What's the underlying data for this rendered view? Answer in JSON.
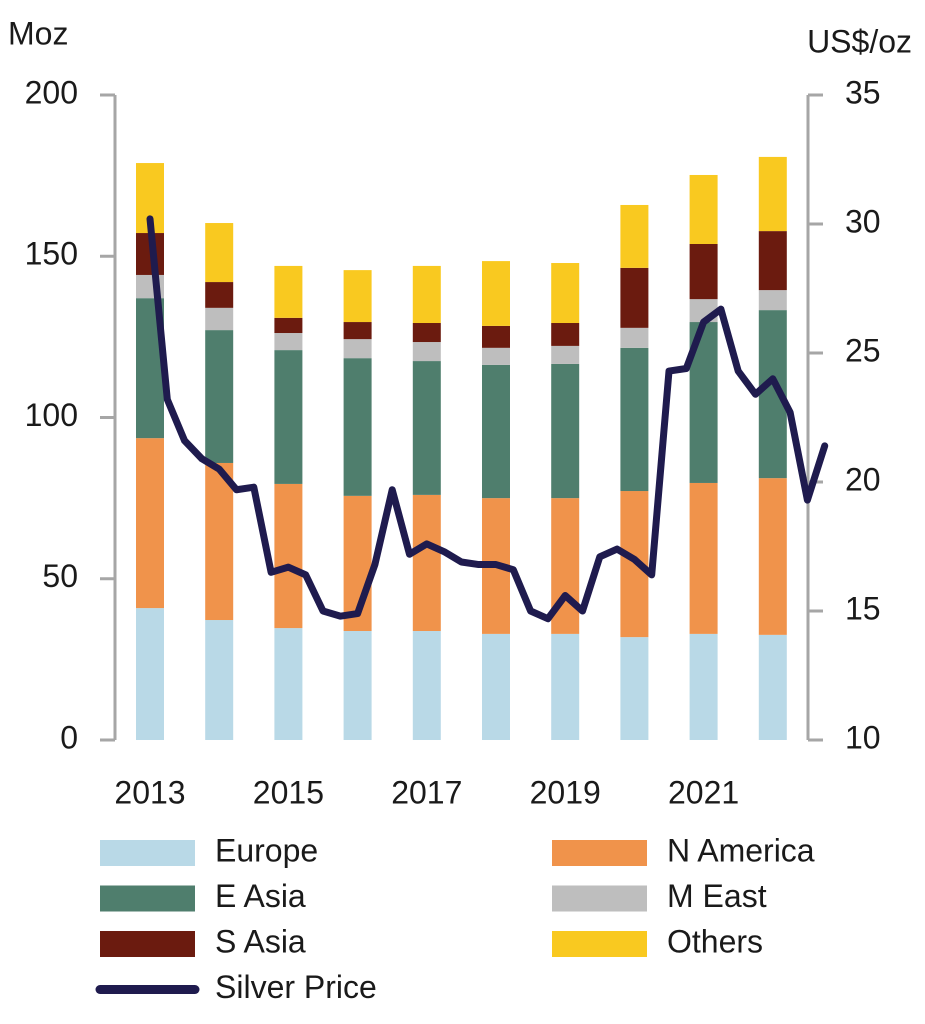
{
  "chart_data": {
    "type": "bar",
    "stacked": true,
    "y_label": "Moz",
    "y2_label": "US$/oz",
    "categories": [
      "2013",
      null,
      "2015",
      null,
      "2017",
      null,
      "2019",
      null,
      "2021",
      null
    ],
    "ylim": [
      0,
      200
    ],
    "yticks": [
      0,
      50,
      100,
      150,
      200
    ],
    "y2lim": [
      10,
      35
    ],
    "y2ticks": [
      10,
      15,
      20,
      25,
      30,
      35
    ],
    "series": [
      {
        "name": "Europe",
        "color": "#b9d9e7",
        "values": [
          40.9,
          37.2,
          34.7,
          33.8,
          33.8,
          32.9,
          32.9,
          31.9,
          32.9,
          32.6
        ]
      },
      {
        "name": "N America",
        "color": "#f0934b",
        "values": [
          52.7,
          48.7,
          44.7,
          41.9,
          42.2,
          42.1,
          42.1,
          45.3,
          46.8,
          48.6
        ]
      },
      {
        "name": "E Asia",
        "color": "#4f7e6d",
        "values": [
          43.4,
          41.2,
          41.5,
          42.7,
          41.5,
          41.3,
          41.6,
          44.4,
          49.9,
          52.1
        ]
      },
      {
        "name": "M East",
        "color": "#bebebe",
        "values": [
          7.2,
          6.9,
          5.3,
          5.9,
          5.9,
          5.3,
          5.6,
          6.2,
          7.1,
          6.2
        ]
      },
      {
        "name": "S Asia",
        "color": "#6b1b0f",
        "values": [
          13,
          8,
          4.7,
          5.3,
          5.9,
          6.8,
          7.1,
          18.6,
          17.1,
          18.3
        ]
      },
      {
        "name": "Others",
        "color": "#f9c920",
        "values": [
          21.7,
          18.3,
          16.1,
          16.1,
          17.7,
          20.1,
          18.6,
          19.5,
          21.4,
          23
        ]
      },
      {
        "name": "Silver Price",
        "color": "#1f1b4e",
        "type": "line",
        "axis": "y2",
        "x": [
          2013,
          2013.25,
          2013.5,
          2013.75,
          2014,
          2014.25,
          2014.5,
          2014.75,
          2015,
          2015.25,
          2015.5,
          2015.75,
          2016,
          2016.25,
          2016.5,
          2016.75,
          2017,
          2017.25,
          2017.5,
          2017.75,
          2018,
          2018.25,
          2018.5,
          2018.75,
          2019,
          2019.25,
          2019.5,
          2019.75,
          2020,
          2020.25,
          2020.5,
          2020.75,
          2021,
          2021.25,
          2021.5,
          2021.75,
          2022,
          2022.25,
          2022.5,
          2022.75
        ],
        "values": [
          30.2,
          23.2,
          21.6,
          20.9,
          20.5,
          19.7,
          19.8,
          16.5,
          16.7,
          16.4,
          15.0,
          14.8,
          14.9,
          16.8,
          19.7,
          17.2,
          17.6,
          17.3,
          16.9,
          16.8,
          16.8,
          16.6,
          15.0,
          14.7,
          15.6,
          15.0,
          17.1,
          17.4,
          17.0,
          16.4,
          24.3,
          24.4,
          26.2,
          26.7,
          24.3,
          23.4,
          24.0,
          22.7,
          19.3,
          21.4
        ]
      }
    ]
  }
}
